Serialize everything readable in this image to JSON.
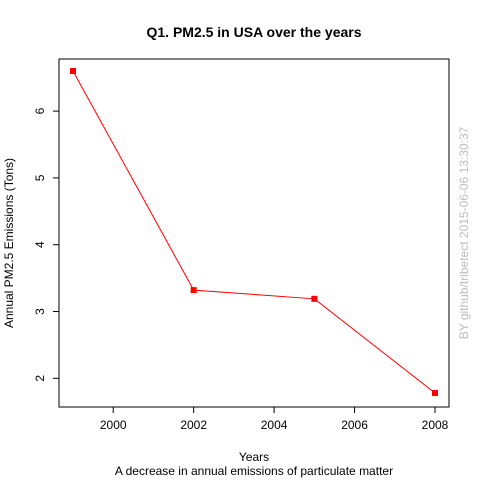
{
  "chart_data": {
    "type": "line",
    "title": "Q1. PM2.5 in USA over the years",
    "xlabel": "Years",
    "ylabel": "Annual PM2.5 Emissions (Tons)",
    "subtitle": "A decrease in annual emissions of particulate matter",
    "watermark": "BY github/tribetect 2015-06-06 13:30:37",
    "x": [
      1999,
      2002,
      2005,
      2008
    ],
    "y": [
      6.6,
      3.32,
      3.19,
      1.78
    ],
    "xlim": [
      1999,
      2008
    ],
    "ylim": [
      1.78,
      6.6
    ],
    "xticks": [
      2000,
      2002,
      2004,
      2006,
      2008
    ],
    "yticks": [
      2,
      3,
      4,
      5,
      6
    ],
    "grid": false,
    "color": "#ff0000",
    "marker": "square"
  }
}
